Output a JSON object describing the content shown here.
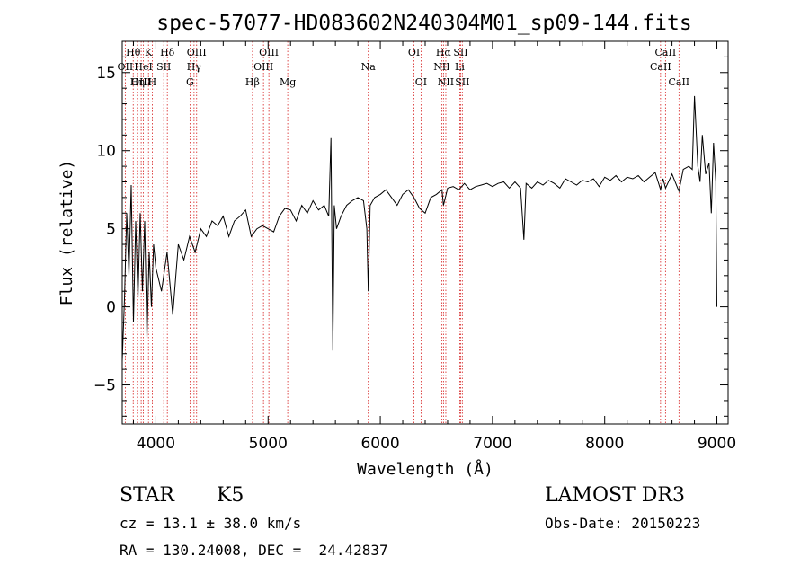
{
  "chart_data": {
    "type": "line",
    "title": "spec-57077-HD083602N240304M01_sp09-144.fits",
    "xlabel": "Wavelength (Å)",
    "ylabel": "Flux (relative)",
    "xlim": [
      3700,
      9100
    ],
    "ylim": [
      -7.5,
      17
    ],
    "x_ticks": [
      4000,
      5000,
      6000,
      7000,
      8000,
      9000
    ],
    "y_ticks": [
      -5,
      0,
      5,
      10,
      15
    ],
    "grid": false,
    "series": [
      {
        "name": "flux",
        "color": "#000000",
        "x": [
          3700,
          3720,
          3740,
          3760,
          3780,
          3800,
          3820,
          3840,
          3860,
          3880,
          3900,
          3920,
          3940,
          3960,
          3980,
          4000,
          4050,
          4100,
          4150,
          4200,
          4250,
          4300,
          4350,
          4400,
          4450,
          4500,
          4550,
          4600,
          4650,
          4700,
          4750,
          4800,
          4850,
          4900,
          4950,
          5000,
          5050,
          5100,
          5150,
          5200,
          5250,
          5300,
          5350,
          5400,
          5450,
          5500,
          5540,
          5560,
          5577,
          5590,
          5610,
          5650,
          5700,
          5750,
          5800,
          5850,
          5880,
          5893,
          5910,
          5950,
          6000,
          6050,
          6100,
          6150,
          6200,
          6250,
          6300,
          6350,
          6400,
          6450,
          6500,
          6550,
          6563,
          6600,
          6650,
          6700,
          6750,
          6800,
          6850,
          6900,
          6950,
          7000,
          7050,
          7100,
          7150,
          7200,
          7250,
          7280,
          7300,
          7350,
          7400,
          7450,
          7500,
          7550,
          7600,
          7650,
          7700,
          7750,
          7800,
          7850,
          7900,
          7950,
          8000,
          8050,
          8100,
          8150,
          8200,
          8250,
          8300,
          8350,
          8400,
          8450,
          8498,
          8520,
          8542,
          8600,
          8662,
          8700,
          8750,
          8780,
          8800,
          8830,
          8850,
          8870,
          8900,
          8930,
          8950,
          8970,
          8990,
          9000
        ],
        "y": [
          -3.5,
          0.5,
          6.0,
          2.0,
          7.8,
          -1.0,
          5.5,
          0.5,
          6.0,
          1.0,
          5.5,
          -2.0,
          3.5,
          0.0,
          4.0,
          2.5,
          1.0,
          3.5,
          -0.5,
          4.0,
          3.0,
          4.5,
          3.5,
          5.0,
          4.5,
          5.5,
          5.2,
          5.8,
          4.5,
          5.5,
          5.8,
          6.2,
          4.5,
          5.0,
          5.2,
          5.0,
          4.8,
          5.8,
          6.3,
          6.2,
          5.5,
          6.5,
          6.0,
          6.8,
          6.2,
          6.5,
          5.8,
          10.8,
          -2.8,
          6.5,
          5.0,
          5.8,
          6.5,
          6.8,
          7.0,
          6.8,
          5.0,
          1.0,
          6.5,
          7.0,
          7.2,
          7.5,
          7.0,
          6.5,
          7.2,
          7.5,
          7.0,
          6.3,
          6.0,
          7.0,
          7.2,
          7.5,
          6.5,
          7.6,
          7.7,
          7.5,
          7.9,
          7.5,
          7.7,
          7.8,
          7.9,
          7.7,
          7.9,
          8.0,
          7.6,
          8.0,
          7.6,
          4.3,
          7.9,
          7.6,
          8.0,
          7.8,
          8.1,
          7.9,
          7.6,
          8.2,
          8.0,
          7.8,
          8.1,
          8.0,
          8.2,
          7.7,
          8.3,
          8.1,
          8.4,
          8.0,
          8.3,
          8.2,
          8.4,
          8.0,
          8.3,
          8.6,
          7.5,
          8.2,
          7.6,
          8.5,
          7.4,
          8.8,
          9.0,
          8.8,
          13.5,
          9.0,
          8.0,
          11.0,
          8.5,
          9.2,
          6.0,
          10.5,
          8.0,
          0.0
        ]
      }
    ],
    "line_markers": [
      {
        "label": "Hθ",
        "wavelength": 3798,
        "row": 1
      },
      {
        "label": "OII",
        "wavelength": 3727,
        "row": 2
      },
      {
        "label": "OIII",
        "wavelength": 3869,
        "row": 3
      },
      {
        "label": "Hη",
        "wavelength": 3835,
        "row": 3
      },
      {
        "label": "K",
        "wavelength": 3934,
        "row": 1
      },
      {
        "label": "HeI",
        "wavelength": 3889,
        "row": 2
      },
      {
        "label": "H",
        "wavelength": 3968,
        "row": 3
      },
      {
        "label": "Hδ",
        "wavelength": 4102,
        "row": 1
      },
      {
        "label": "SII",
        "wavelength": 4070,
        "row": 2
      },
      {
        "label": "OIII",
        "wavelength": 4363,
        "row": 1
      },
      {
        "label": "Hγ",
        "wavelength": 4340,
        "row": 2
      },
      {
        "label": "G",
        "wavelength": 4304,
        "row": 3
      },
      {
        "label": "OIII",
        "wavelength": 5007,
        "row": 1
      },
      {
        "label": "OIII",
        "wavelength": 4959,
        "row": 2
      },
      {
        "label": "Hβ",
        "wavelength": 4861,
        "row": 3
      },
      {
        "label": "Mg",
        "wavelength": 5175,
        "row": 3
      },
      {
        "label": "Na",
        "wavelength": 5893,
        "row": 2
      },
      {
        "label": "OI",
        "wavelength": 6300,
        "row": 1
      },
      {
        "label": "OI",
        "wavelength": 6363,
        "row": 3
      },
      {
        "label": "Hα",
        "wavelength": 6563,
        "row": 1
      },
      {
        "label": "SII",
        "wavelength": 6716,
        "row": 1
      },
      {
        "label": "NII",
        "wavelength": 6548,
        "row": 2
      },
      {
        "label": "Li",
        "wavelength": 6708,
        "row": 2
      },
      {
        "label": "NII",
        "wavelength": 6584,
        "row": 3
      },
      {
        "label": "SII",
        "wavelength": 6731,
        "row": 3
      },
      {
        "label": "CaII",
        "wavelength": 8542,
        "row": 1
      },
      {
        "label": "CaII",
        "wavelength": 8498,
        "row": 2
      },
      {
        "label": "CaII",
        "wavelength": 8662,
        "row": 3
      }
    ],
    "colors": {
      "spectrum": "#000000",
      "marker_line": "#d62020",
      "axes": "#000000"
    }
  },
  "info": {
    "object_class": "STAR",
    "subclass": "K5",
    "survey": "LAMOST DR3",
    "redshift": "cz = 13.1 ± 38.0 km/s",
    "obs_date": "Obs-Date: 20150223",
    "coords": "RA = 130.24008, DEC =  24.42837"
  }
}
